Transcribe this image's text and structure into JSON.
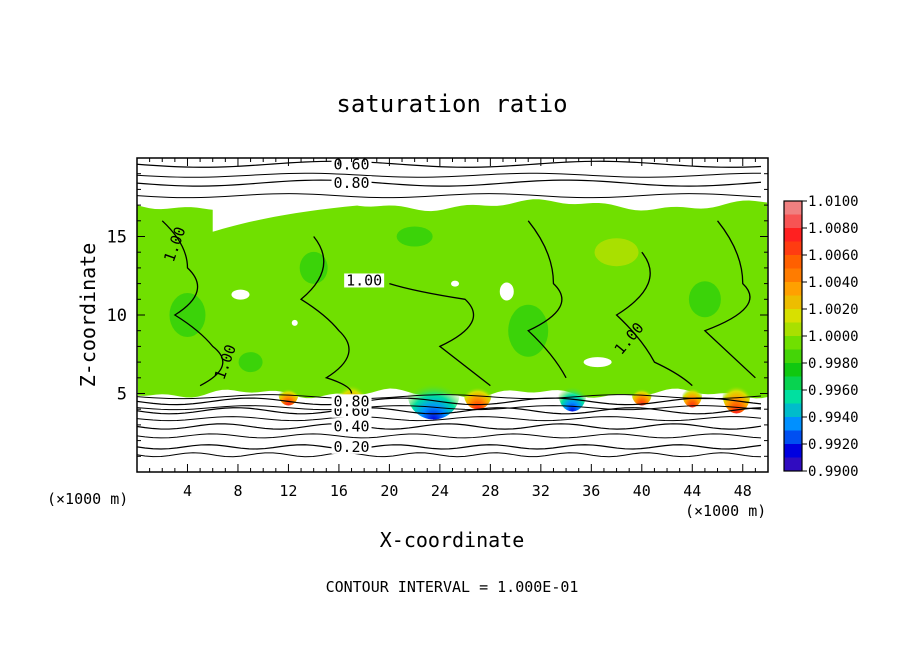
{
  "chart_data": {
    "type": "heatmap",
    "title": "saturation ratio",
    "xlabel": "X-coordinate",
    "ylabel": "Z-coordinate",
    "x_units": "(×1000 m)",
    "y_units": "(×1000 m)",
    "xlim": [
      0,
      50
    ],
    "ylim": [
      0,
      20
    ],
    "x_ticks": [
      4,
      8,
      12,
      16,
      20,
      24,
      28,
      32,
      36,
      40,
      44,
      48
    ],
    "y_ticks": [
      5,
      10,
      15
    ],
    "footer": "CONTOUR INTERVAL = 1.000E-01",
    "colorbar": {
      "levels": [
        "1.0100",
        "1.0080",
        "1.0060",
        "1.0040",
        "1.0020",
        "1.0000",
        "0.9980",
        "0.9960",
        "0.9940",
        "0.9920",
        "0.9900"
      ],
      "colors": [
        "#f08080",
        "#ff2020",
        "#ff6000",
        "#ffa000",
        "#d8e000",
        "#70e000",
        "#10c810",
        "#00e0a0",
        "#0090ff",
        "#0000e0",
        "#6a1a9a"
      ]
    },
    "field": {
      "moist_layer_bottom": 5,
      "moist_layer_top": 17,
      "background_value": 1.0005
    },
    "contours": [
      {
        "label": "0.20",
        "z": 1.6
      },
      {
        "label": "0.40",
        "z": 2.9
      },
      {
        "label": "0.60",
        "z": 3.9
      },
      {
        "label": "0.80",
        "z": 4.5
      },
      {
        "label": "1.00",
        "z": 14.5
      },
      {
        "label": "1.00",
        "z": 12.2
      },
      {
        "label": "1.00",
        "z": 7.0
      },
      {
        "label": "1.00",
        "z": 8.5
      },
      {
        "label": "0.80",
        "z": 18.4
      },
      {
        "label": "0.60",
        "z": 19.6
      }
    ]
  }
}
